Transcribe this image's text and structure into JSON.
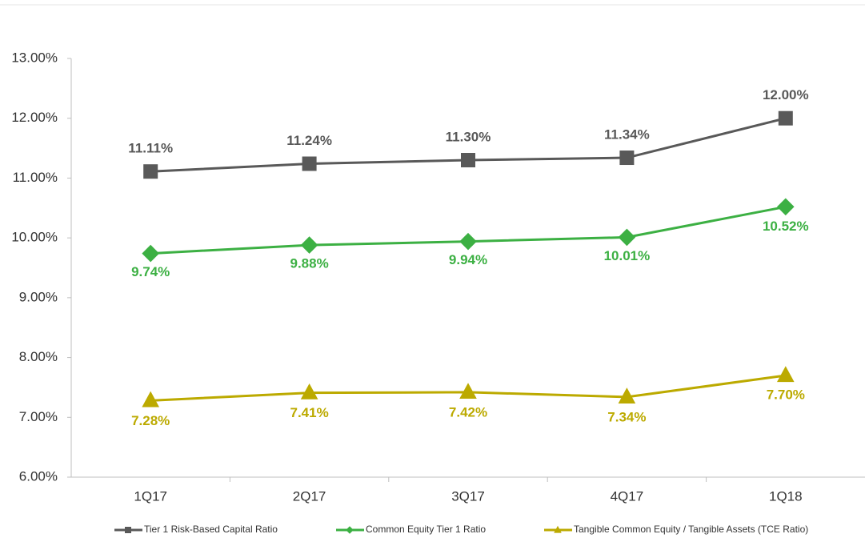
{
  "chart_data": {
    "type": "line",
    "categories": [
      "1Q17",
      "2Q17",
      "3Q17",
      "4Q17",
      "1Q18"
    ],
    "series": [
      {
        "name": "Tier 1 Risk-Based Capital Ratio",
        "color": "#595959",
        "marker": "square",
        "values": [
          11.11,
          11.24,
          11.3,
          11.34,
          12.0
        ],
        "value_labels": [
          "11.11%",
          "11.24%",
          "11.30%",
          "11.34%",
          "12.00%"
        ]
      },
      {
        "name": "Common Equity Tier 1 Ratio",
        "color": "#3cb043",
        "marker": "diamond",
        "values": [
          9.74,
          9.88,
          9.94,
          10.01,
          10.52
        ],
        "value_labels": [
          "9.74%",
          "9.88%",
          "9.94%",
          "10.01%",
          "10.52%"
        ]
      },
      {
        "name": "Tangible Common Equity / Tangible Assets (TCE Ratio)",
        "color": "#bcaa00",
        "marker": "triangle",
        "values": [
          7.28,
          7.41,
          7.42,
          7.34,
          7.7
        ],
        "value_labels": [
          "7.28%",
          "7.41%",
          "7.42%",
          "7.34%",
          "7.70%"
        ]
      }
    ],
    "ylim": [
      6,
      13
    ],
    "yticks": [
      {
        "value": 6,
        "label": "6.00%"
      },
      {
        "value": 7,
        "label": "7.00%"
      },
      {
        "value": 8,
        "label": "8.00%"
      },
      {
        "value": 9,
        "label": "9.00%"
      },
      {
        "value": 10,
        "label": "10.00%"
      },
      {
        "value": 11,
        "label": "11.00%"
      },
      {
        "value": 12,
        "label": "12.00%"
      },
      {
        "value": 13,
        "label": "13.00%"
      }
    ],
    "grid": false,
    "legend": "bottom"
  }
}
